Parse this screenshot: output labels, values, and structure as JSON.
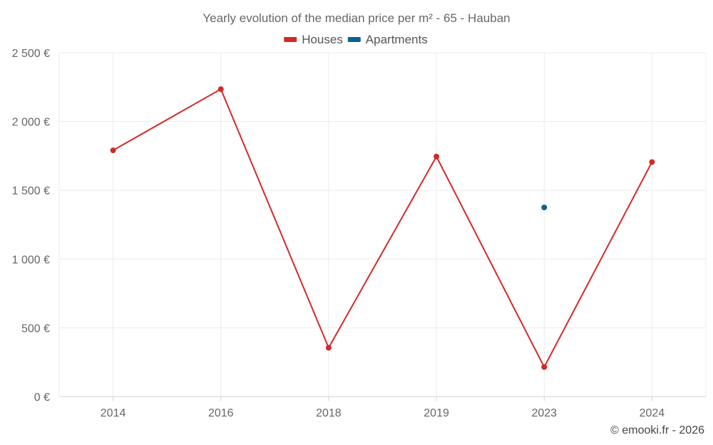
{
  "chart_data": {
    "type": "line",
    "title": "Yearly evolution of the median price per m² - 65 - Hauban",
    "categories": [
      "2014",
      "2016",
      "2018",
      "2019",
      "2023",
      "2024"
    ],
    "series": [
      {
        "name": "Houses",
        "color": "#d12a2a",
        "values": [
          1790,
          2235,
          355,
          1745,
          215,
          1705
        ]
      },
      {
        "name": "Apartments",
        "color": "#0c6196",
        "values": [
          null,
          null,
          null,
          null,
          1375,
          null
        ]
      }
    ],
    "ylim": [
      0,
      2500
    ],
    "yticks": [
      0,
      500,
      1000,
      1500,
      2000,
      2500
    ],
    "ytick_labels": [
      "0 €",
      "500 €",
      "1 000 €",
      "1 500 €",
      "2 000 €",
      "2 500 €"
    ],
    "xlabel": "",
    "ylabel": "",
    "grid": true,
    "legend_position": "top-center"
  },
  "credit": "© emooki.fr - 2026"
}
